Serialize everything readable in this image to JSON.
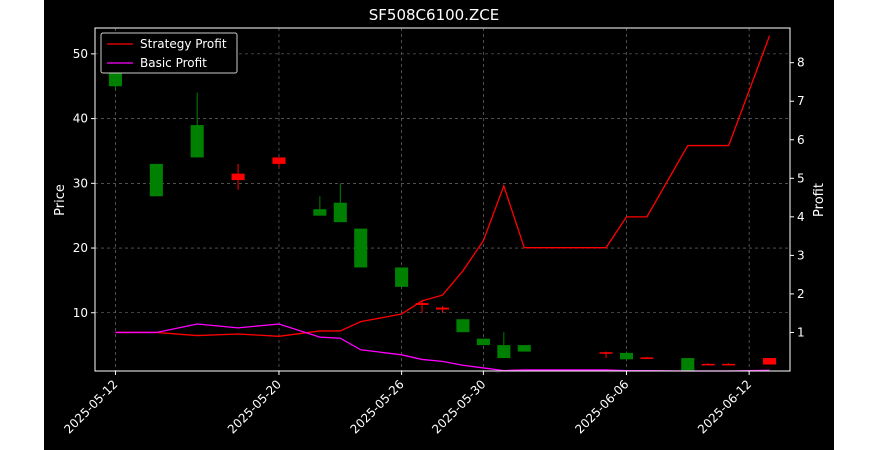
{
  "chart_data": {
    "type": "candlestick-line",
    "title": "SF508C6100.ZCE",
    "ylabel_left": "Price",
    "ylabel_right": "Profit",
    "ylim_left": [
      1,
      54
    ],
    "ylim_right": [
      0,
      8.9
    ],
    "yticks_left": [
      "10",
      "20",
      "30",
      "40",
      "50"
    ],
    "yticks_right": [
      "1",
      "2",
      "3",
      "4",
      "5",
      "6",
      "7",
      "8"
    ],
    "xticks": [
      "2025-05-12",
      "2025-05-20",
      "2025-05-26",
      "2025-05-30",
      "2025-06-06",
      "2025-06-12"
    ],
    "grid": true,
    "legend_position": "top-left",
    "colors": {
      "up": "#008000",
      "down": "#ff0000",
      "strategy": "#ff0000",
      "basic": "#ff00ff",
      "background": "#000000",
      "grid": "#808080"
    },
    "candles": [
      {
        "date": "2025-05-12",
        "open": 45,
        "high": 47,
        "low": 44.5,
        "close": 47
      },
      {
        "date": "2025-05-14",
        "open": 28,
        "high": 33,
        "low": 28,
        "close": 33
      },
      {
        "date": "2025-05-16",
        "open": 34,
        "high": 44,
        "low": 34,
        "close": 39
      },
      {
        "date": "2025-05-18",
        "open": 31.5,
        "high": 33,
        "low": 29,
        "close": 30.5
      },
      {
        "date": "2025-05-20",
        "open": 34,
        "high": 34,
        "low": 32.5,
        "close": 33
      },
      {
        "date": "2025-05-22",
        "open": 25,
        "high": 28,
        "low": 25,
        "close": 26
      },
      {
        "date": "2025-05-23",
        "open": 24,
        "high": 30,
        "low": 24,
        "close": 27
      },
      {
        "date": "2025-05-24",
        "open": 17,
        "high": 23,
        "low": 17,
        "close": 23
      },
      {
        "date": "2025-05-26",
        "open": 14,
        "high": 17,
        "low": 14,
        "close": 17
      },
      {
        "date": "2025-05-27",
        "open": 11.5,
        "high": 12,
        "low": 10,
        "close": 11.2
      },
      {
        "date": "2025-05-28",
        "open": 10.8,
        "high": 11,
        "low": 10,
        "close": 10.5
      },
      {
        "date": "2025-05-29",
        "open": 7,
        "high": 9,
        "low": 7,
        "close": 9
      },
      {
        "date": "2025-05-30",
        "open": 5,
        "high": 6,
        "low": 5,
        "close": 6
      },
      {
        "date": "2025-05-31",
        "open": 3,
        "high": 7,
        "low": 3,
        "close": 5
      },
      {
        "date": "2025-06-01",
        "open": 4,
        "high": 5,
        "low": 4,
        "close": 5
      },
      {
        "date": "2025-06-05",
        "open": 3.9,
        "high": 4,
        "low": 3,
        "close": 3.7
      },
      {
        "date": "2025-06-06",
        "open": 2.8,
        "high": 4,
        "low": 2.8,
        "close": 3.8
      },
      {
        "date": "2025-06-07",
        "open": 3.1,
        "high": 3.2,
        "low": 3,
        "close": 3.0
      },
      {
        "date": "2025-06-09",
        "open": 1,
        "high": 3,
        "low": 1,
        "close": 3
      },
      {
        "date": "2025-06-10",
        "open": 2.1,
        "high": 2.2,
        "low": 2,
        "close": 2.0
      },
      {
        "date": "2025-06-11",
        "open": 2.1,
        "high": 2.2,
        "low": 2,
        "close": 2.0
      },
      {
        "date": "2025-06-13",
        "open": 3,
        "high": 3,
        "low": 2,
        "close": 2
      }
    ],
    "series": [
      {
        "name": "Strategy Profit",
        "axis": "right",
        "values": [
          1.0,
          1.0,
          0.92,
          0.96,
          0.9,
          1.04,
          1.04,
          1.28,
          1.48,
          1.82,
          1.97,
          2.6,
          3.38,
          4.8,
          3.2,
          3.2,
          4.0,
          4.0,
          5.85,
          5.85,
          5.85,
          8.7
        ]
      },
      {
        "name": "Basic Profit",
        "axis": "right",
        "values": [
          1.0,
          1.0,
          1.22,
          1.12,
          1.22,
          0.88,
          0.85,
          0.55,
          0.42,
          0.3,
          0.25,
          0.15,
          0.08,
          0.01,
          0.03,
          0.03,
          0.01,
          0.01,
          0.0,
          0.0,
          0.0,
          0.02
        ]
      }
    ]
  }
}
